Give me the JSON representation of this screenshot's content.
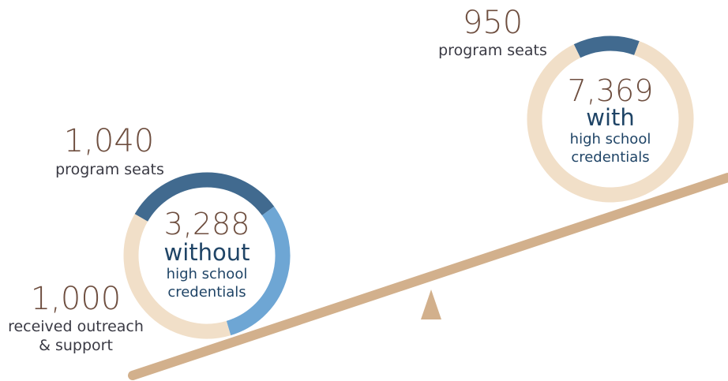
{
  "colors": {
    "seats": "#416a8f",
    "outreach": "#6ea6d4",
    "remaining": "#f1dfc8",
    "beam": "#d2b08c",
    "number_text": "#6e4e3f",
    "center_text": "#1f4466"
  },
  "chart_data": {
    "type": "donut",
    "groups": [
      {
        "total": "3,288",
        "label_line1": "without",
        "label_line2": "high school",
        "label_line3": "credentials",
        "total_value": 3288,
        "segments": [
          {
            "value": 1040,
            "value_label": "1,040",
            "caption": "program seats",
            "color": "#416a8f"
          },
          {
            "value": 1000,
            "value_label": "1,000",
            "caption_line1": "received outreach",
            "caption_line2": "& support",
            "color": "#6ea6d4"
          },
          {
            "value": 1248,
            "color": "#f1dfc8"
          }
        ]
      },
      {
        "total": "7,369",
        "label_line1": "with",
        "label_line2": "high school",
        "label_line3": "credentials",
        "total_value": 7369,
        "segments": [
          {
            "value": 950,
            "value_label": "950",
            "caption": "program seats",
            "color": "#416a8f"
          },
          {
            "value": 6419,
            "color": "#f1dfc8"
          }
        ]
      }
    ]
  }
}
